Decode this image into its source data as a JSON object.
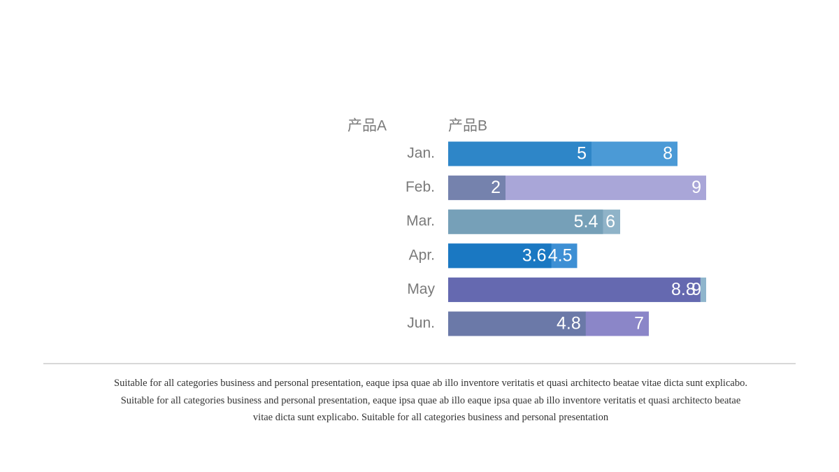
{
  "chart_data": {
    "type": "overlap-bar",
    "categories": [
      "Jan.",
      "Feb.",
      "Mar.",
      "Apr.",
      "May",
      "Jun."
    ],
    "series": [
      {
        "name": "产品B",
        "values": [
          8,
          9,
          6,
          4.5,
          9,
          7
        ],
        "colors": [
          "#4b9ad6",
          "#a9a6d8",
          "#8fb3c8",
          "#3d8fd4",
          "#8fb5cc",
          "#8b86c8"
        ]
      },
      {
        "name": "产品A",
        "values": [
          5,
          2,
          5.4,
          3.6,
          8.8,
          4.8
        ],
        "colors": [
          "#2e86c8",
          "#7582ad",
          "#76a0b8",
          "#1a78c2",
          "#6569b0",
          "#6b79a8"
        ]
      }
    ]
  },
  "caption": [
    "Suitable for all categories business and personal presentation, eaque ipsa quae ab illo inventore veritatis et quasi architecto beatae vitae dicta sunt explicabo.",
    "Suitable for all categories business and personal presentation, eaque ipsa quae ab illo eaque ipsa quae ab illo inventore veritatis et quasi architecto beatae",
    "vitae dicta sunt explicabo. Suitable for all categories business and personal presentation"
  ]
}
